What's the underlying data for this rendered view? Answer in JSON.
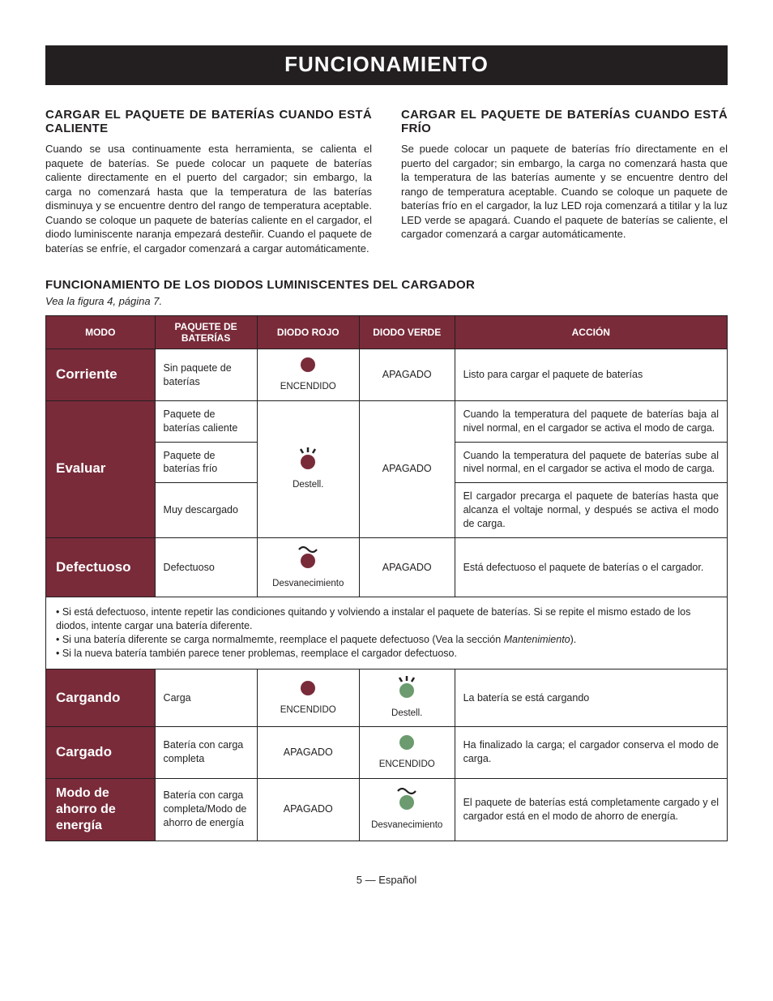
{
  "banner": "FUNCIONAMIENTO",
  "left": {
    "heading": "CARGAR EL PAQUETE DE BATERÍAS CUANDO ESTÁ CALIENTE",
    "body": "Cuando se usa continuamente esta herramienta, se calienta el paquete de baterías. Se puede colocar un paquete de baterías caliente directamente en el puerto del cargador; sin embargo, la carga no comenzará hasta que la temperatura de las baterías disminuya y se encuentre dentro del rango de temperatura aceptable. Cuando se coloque un paquete de baterías caliente en el cargador, el diodo luminiscente naranja empezará desteñir. Cuando el paquete de baterías se enfríe, el cargador comenzará a cargar automáticamente."
  },
  "right": {
    "heading": "CARGAR EL PAQUETE DE BATERÍAS CUANDO ESTÁ FRÍO",
    "body": "Se puede colocar un paquete de baterías frío directamente en el puerto del cargador; sin embargo, la carga no comenzará hasta que la temperatura de las baterías aumente y se encuentre dentro del rango de temperatura aceptable. Cuando se coloque un paquete de baterías frío en el cargador, la luz LED roja comenzará a titilar y la luz LED verde se apagará. Cuando el paquete de baterías se caliente, el cargador comenzará a cargar automáticamente."
  },
  "table_section": {
    "heading": "FUNCIONAMIENTO DE LOS DIODOS LUMINISCENTES DEL CARGADOR",
    "figref": "Vea la figura 4, página 7."
  },
  "headers": {
    "mode": "MODO",
    "pack": "PAQUETE DE BATERÍAS",
    "red": "DIODO ROJO",
    "green": "DIODO VERDE",
    "action": "ACCIÓN"
  },
  "led_labels": {
    "on": "ENCENDIDO",
    "off": "APAGADO",
    "flash": "Destell.",
    "fade": "Desvanecimiento"
  },
  "colors": {
    "red": "#792b3a",
    "green": "#6b9b6e",
    "off": "#888888"
  },
  "rows": {
    "r1": {
      "mode": "Corriente",
      "pack": "Sin paquete de baterías",
      "green": "APAGADO",
      "action": "Listo para cargar el paquete de baterías"
    },
    "r2": {
      "mode": "Evaluar",
      "pack": "Paquete de baterías caliente",
      "green": "APAGADO",
      "action": "Cuando la temperatura del paquete de baterías baja al nivel normal, en el cargador se activa el modo de carga."
    },
    "r3": {
      "pack": "Paquete de baterías frío",
      "action": "Cuando la temperatura del paquete de baterías sube al nivel normal, en el cargador se activa el modo de carga."
    },
    "r4": {
      "pack": "Muy descargado",
      "action": "El cargador precarga el paquete de baterías hasta que alcanza el voltaje normal, y después se activa el modo de carga."
    },
    "r5": {
      "mode": "Defectuoso",
      "pack": "Defectuoso",
      "green": "APAGADO",
      "action": "Está defectuoso el paquete de baterías o el cargador."
    },
    "r6": {
      "mode": "Cargando",
      "pack": "Carga",
      "action": "La batería se está cargando"
    },
    "r7": {
      "mode": "Cargado",
      "pack": "Batería con carga completa",
      "red": "APAGADO",
      "action": "Ha finalizado la carga; el cargador conserva el modo de carga."
    },
    "r8": {
      "mode": "Modo de ahorro de energía",
      "pack": "Batería con carga completa/Modo de ahorro de energía",
      "red": "APAGADO",
      "action": "El paquete de baterías está completamente cargado y el cargador está en el modo de ahorro de energía."
    }
  },
  "notes": {
    "n1a": "• Si está defectuoso, intente repetir las condiciones quitando y volviendo a instalar el paquete de baterías. Si se repite el mismo estado de los diodos, intente cargar una batería diferente.",
    "n2a": "• Si una batería diferente se carga normalmemte, reemplace el paquete defectuoso (Vea la sección ",
    "n2b": "Mantenimiento",
    "n2c": ").",
    "n3": "• Si la nueva batería también parece tener problemas, reemplace el cargador defectuoso."
  },
  "footer": "5 — Español",
  "svg": {
    "solid_red": "<svg width='22' height='22' data-name='led-solid-icon' data-interactable='false'><circle cx='11' cy='11' r='9' fill='#792b3a'/></svg>",
    "flash_red": "<svg width='34' height='30' data-name='led-flash-icon' data-interactable='false'><line x1='11' y1='7' x2='8' y2='2' stroke='#231f20' stroke-width='2.5'/><line x1='17' y1='6' x2='17' y2='0' stroke='#231f20' stroke-width='2.5'/><line x1='23' y1='7' x2='26' y2='2' stroke='#231f20' stroke-width='2.5'/><circle cx='17' cy='18' r='9' fill='#792b3a'/></svg>",
    "fade_red": "<svg width='34' height='32' data-name='led-fade-icon' data-interactable='false'><path d='M6 6 Q11 0 17 6 Q23 12 28 6' stroke='#231f20' stroke-width='2.2' fill='none'/><circle cx='17' cy='20' r='9' fill='#792b3a'/></svg>",
    "solid_green": "<svg width='22' height='22' data-name='led-solid-icon' data-interactable='false'><circle cx='11' cy='11' r='9' fill='#6b9b6e'/></svg>",
    "flash_green": "<svg width='34' height='30' data-name='led-flash-icon' data-interactable='false'><line x1='11' y1='7' x2='8' y2='2' stroke='#231f20' stroke-width='2.5'/><line x1='17' y1='6' x2='17' y2='0' stroke='#231f20' stroke-width='2.5'/><line x1='23' y1='7' x2='26' y2='2' stroke='#231f20' stroke-width='2.5'/><circle cx='17' cy='18' r='9' fill='#6b9b6e'/></svg>",
    "fade_green": "<svg width='34' height='32' data-name='led-fade-icon' data-interactable='false'><path d='M6 6 Q11 0 17 6 Q23 12 28 6' stroke='#231f20' stroke-width='2.2' fill='none'/><circle cx='17' cy='20' r='9' fill='#6b9b6e'/></svg>"
  }
}
